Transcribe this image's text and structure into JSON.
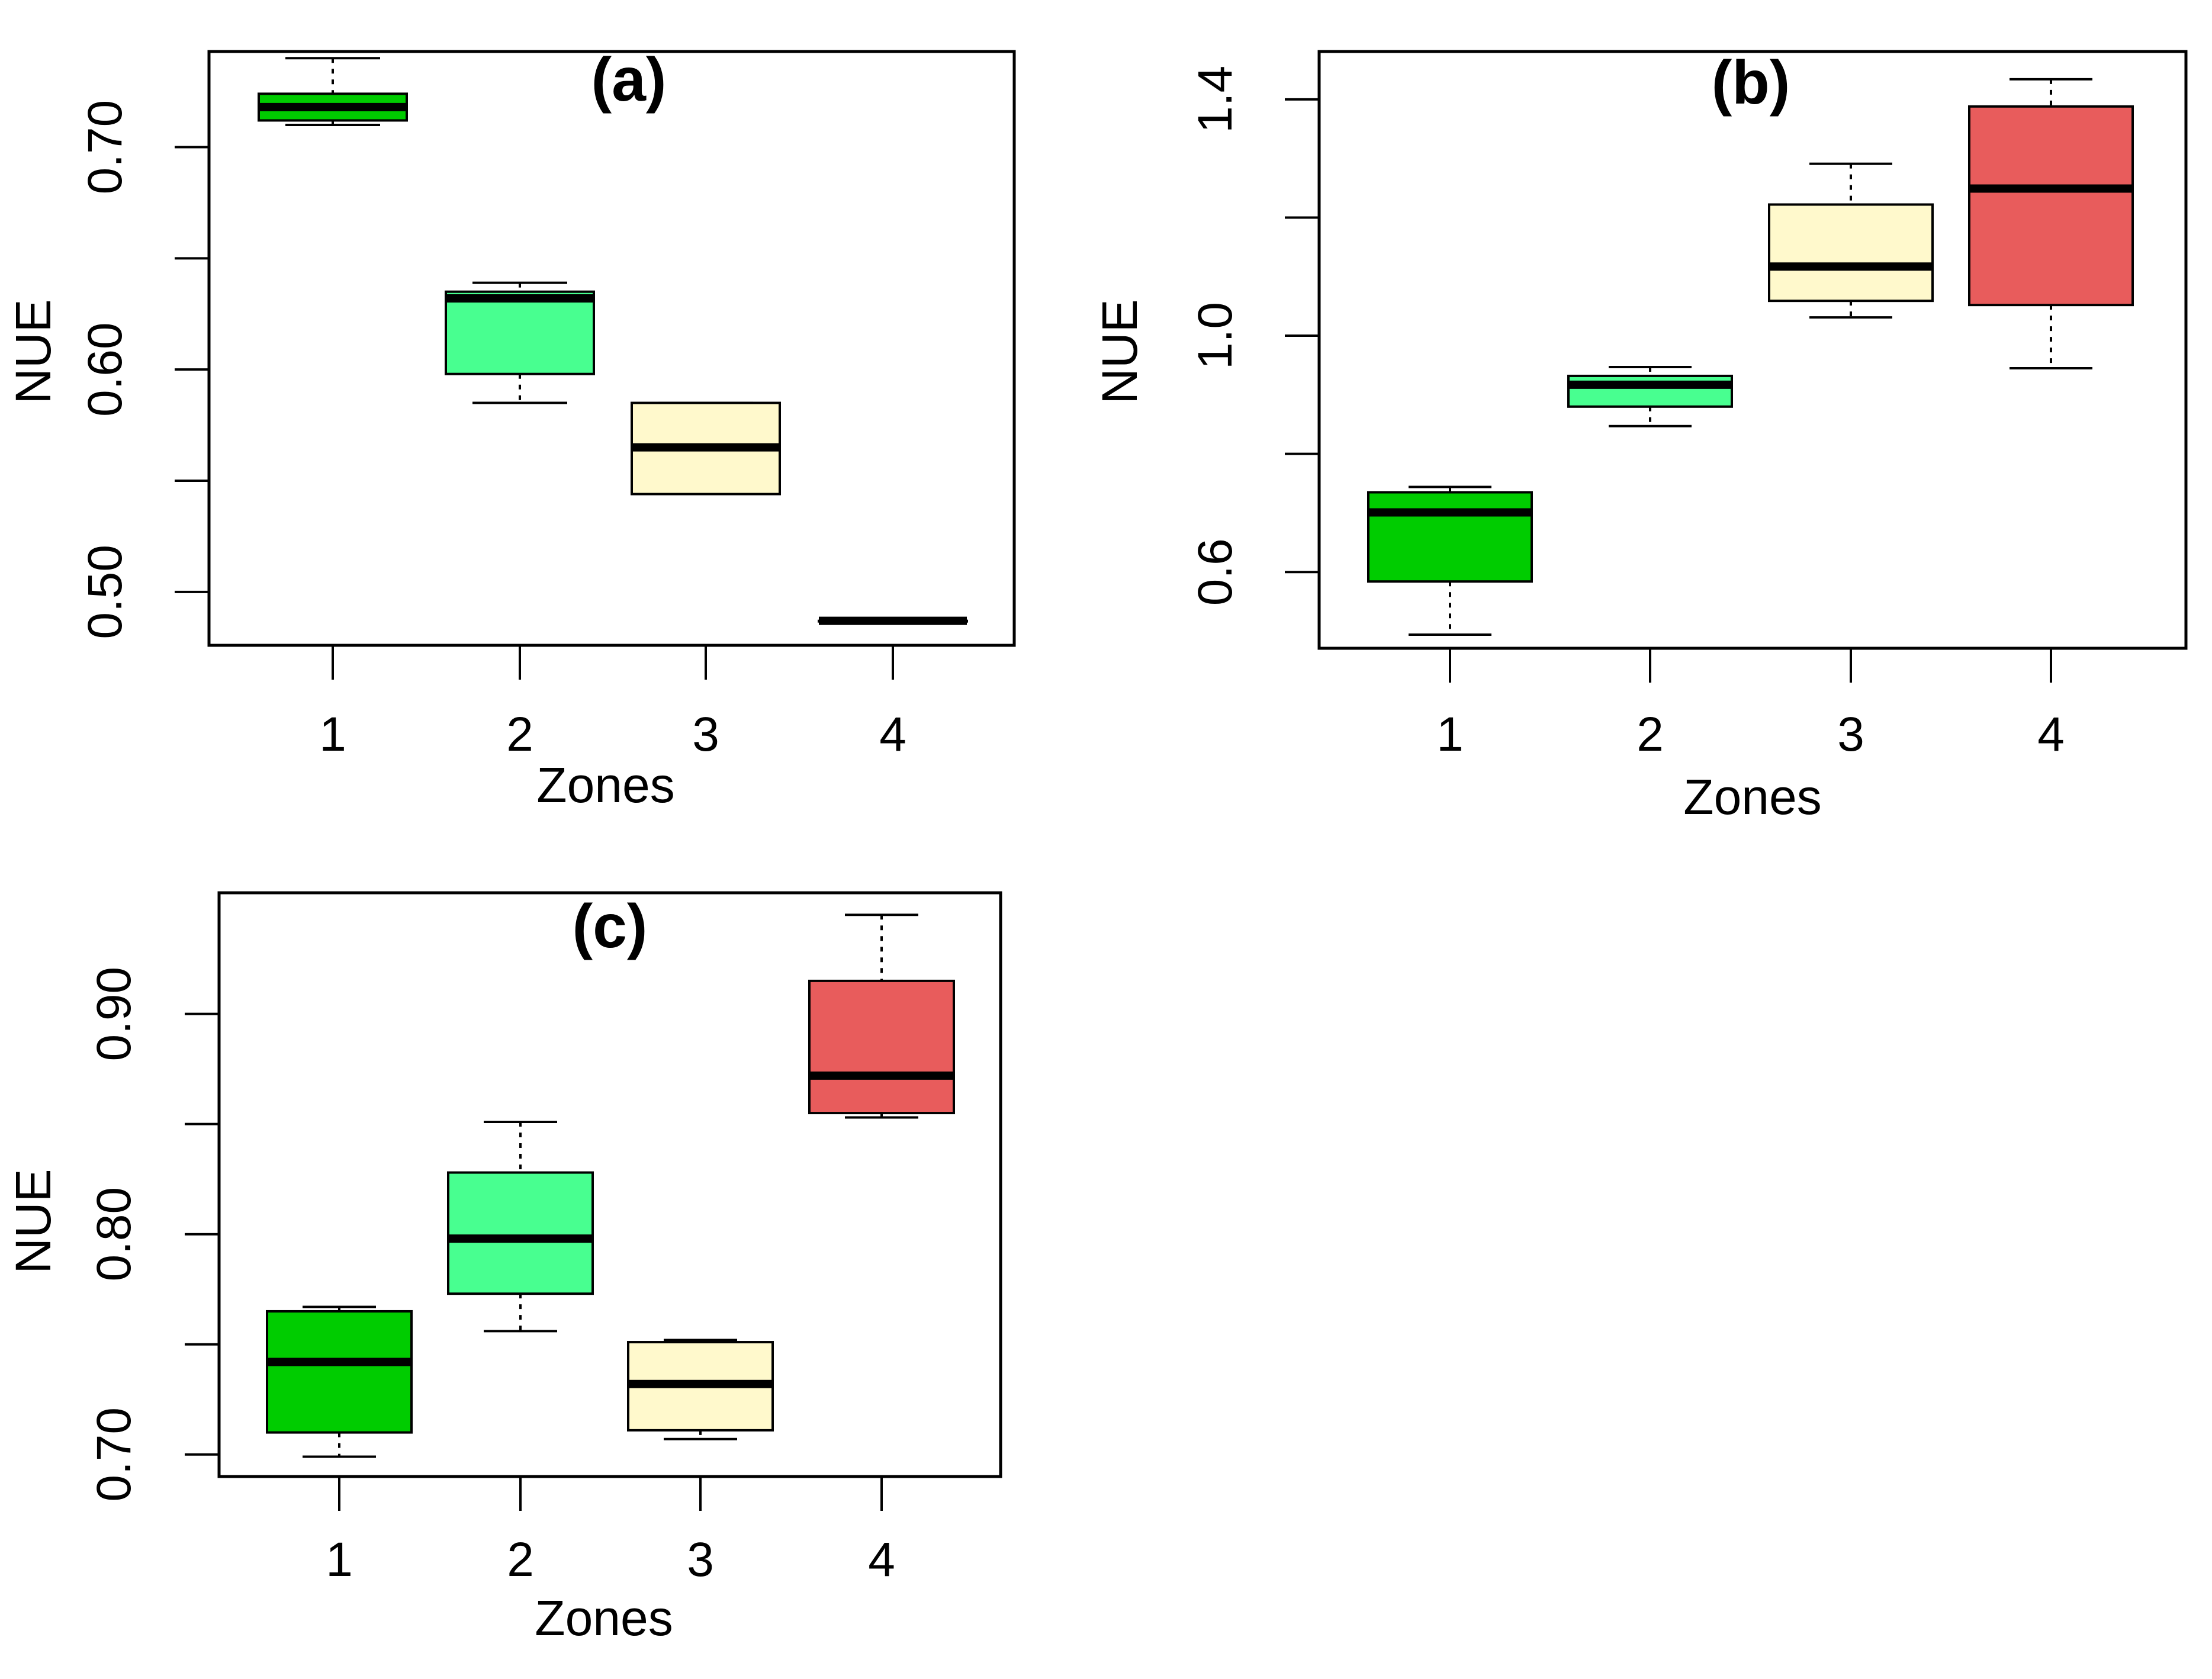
{
  "figure": {
    "background": "#ffffff",
    "frame_color": "#000000"
  },
  "chart_data": [
    {
      "type": "boxplot",
      "title": "(a)",
      "xlabel": "Zones",
      "ylabel": "NUE",
      "categories": [
        "1",
        "2",
        "3",
        "4"
      ],
      "yticks": [
        "0.50",
        "0.60",
        "0.70"
      ],
      "ytick_values": [
        0.5,
        0.6,
        0.7
      ],
      "minor_yticks": [
        0.55,
        0.65
      ],
      "ylim": [
        0.476,
        0.743
      ],
      "grid": false,
      "boxes": [
        {
          "category": "1",
          "whisker_low": 0.71,
          "q1": 0.712,
          "median": 0.718,
          "q3": 0.724,
          "whisker_high": 0.74,
          "color": "#00cc00"
        },
        {
          "category": "2",
          "whisker_low": 0.585,
          "q1": 0.598,
          "median": 0.632,
          "q3": 0.635,
          "whisker_high": 0.639,
          "color": "#48ff90"
        },
        {
          "category": "3",
          "whisker_low": 0.544,
          "q1": 0.544,
          "median": 0.565,
          "q3": 0.585,
          "whisker_high": 0.585,
          "color": "#fff9cc"
        },
        {
          "category": "4",
          "whisker_low": 0.487,
          "q1": 0.487,
          "median": 0.487,
          "q3": 0.487,
          "whisker_high": 0.487,
          "color": "#ffffff"
        }
      ]
    },
    {
      "type": "boxplot",
      "title": "(b)",
      "xlabel": "Zones",
      "ylabel": "NUE",
      "categories": [
        "1",
        "2",
        "3",
        "4"
      ],
      "yticks": [
        "0.6",
        "1.0",
        "1.4"
      ],
      "ytick_values": [
        0.6,
        1.0,
        1.4
      ],
      "minor_yticks": [
        0.8,
        1.2
      ],
      "ylim": [
        0.471,
        1.481
      ],
      "grid": false,
      "boxes": [
        {
          "category": "1",
          "whisker_low": 0.494,
          "q1": 0.584,
          "median": 0.701,
          "q3": 0.735,
          "whisker_high": 0.744,
          "color": "#00cc00"
        },
        {
          "category": "2",
          "whisker_low": 0.847,
          "q1": 0.88,
          "median": 0.917,
          "q3": 0.932,
          "whisker_high": 0.947,
          "color": "#48ff90"
        },
        {
          "category": "3",
          "whisker_low": 1.031,
          "q1": 1.059,
          "median": 1.117,
          "q3": 1.222,
          "whisker_high": 1.291,
          "color": "#fff9cc"
        },
        {
          "category": "4",
          "whisker_low": 0.945,
          "q1": 1.052,
          "median": 1.249,
          "q3": 1.388,
          "whisker_high": 1.434,
          "color": "#e85c5c"
        }
      ]
    },
    {
      "type": "boxplot",
      "title": "(c)",
      "xlabel": "Zones",
      "ylabel": "NUE",
      "categories": [
        "1",
        "2",
        "3",
        "4"
      ],
      "yticks": [
        "0.70",
        "0.80",
        "0.90"
      ],
      "ytick_values": [
        0.7,
        0.8,
        0.9
      ],
      "minor_yticks": [
        0.75,
        0.85
      ],
      "ylim": [
        0.69,
        0.955
      ],
      "grid": false,
      "boxes": [
        {
          "category": "1",
          "whisker_low": 0.699,
          "q1": 0.71,
          "median": 0.742,
          "q3": 0.765,
          "whisker_high": 0.767,
          "color": "#00cc00"
        },
        {
          "category": "2",
          "whisker_low": 0.756,
          "q1": 0.773,
          "median": 0.798,
          "q3": 0.828,
          "whisker_high": 0.851,
          "color": "#48ff90"
        },
        {
          "category": "3",
          "whisker_low": 0.707,
          "q1": 0.711,
          "median": 0.732,
          "q3": 0.751,
          "whisker_high": 0.752,
          "color": "#fff9cc"
        },
        {
          "category": "4",
          "whisker_low": 0.853,
          "q1": 0.855,
          "median": 0.872,
          "q3": 0.915,
          "whisker_high": 0.945,
          "color": "#e85c5c"
        }
      ]
    }
  ]
}
